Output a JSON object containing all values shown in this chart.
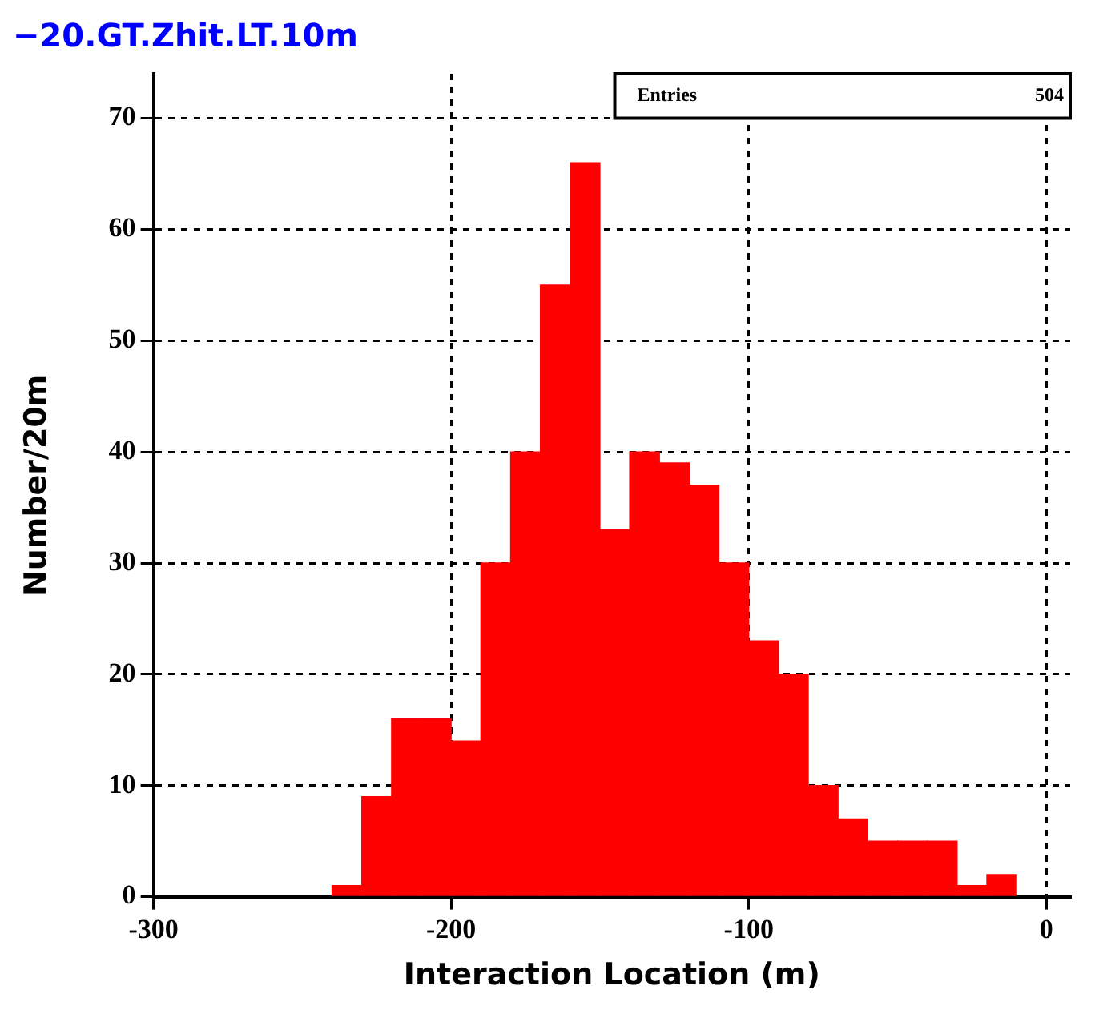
{
  "chart_data": {
    "type": "histogram",
    "title": "−20.GT.Zhit.LT.10m",
    "xlabel": "Interaction Location (m)",
    "ylabel": "Number/20m",
    "bins": [
      -240,
      -230,
      -220,
      -210,
      -200,
      -190,
      -180,
      -170,
      -160,
      -150,
      -140,
      -130,
      -120,
      -110,
      -100,
      -90,
      -80,
      -70,
      -60,
      -50,
      -40,
      -30,
      -20,
      -10
    ],
    "values": [
      1,
      9,
      16,
      16,
      14,
      30,
      40,
      55,
      66,
      33,
      40,
      39,
      37,
      30,
      23,
      20,
      10,
      7,
      5,
      5,
      5,
      1,
      2
    ],
    "color": "#ff0000",
    "xlim": [
      -300,
      8
    ],
    "xticks": [
      -300,
      -200,
      -100,
      0
    ],
    "ylim": [
      0,
      74
    ],
    "yticks": [
      0,
      10,
      20,
      30,
      40,
      50,
      60,
      70
    ],
    "grid": true,
    "annotations": [
      "Entries",
      "504"
    ]
  }
}
